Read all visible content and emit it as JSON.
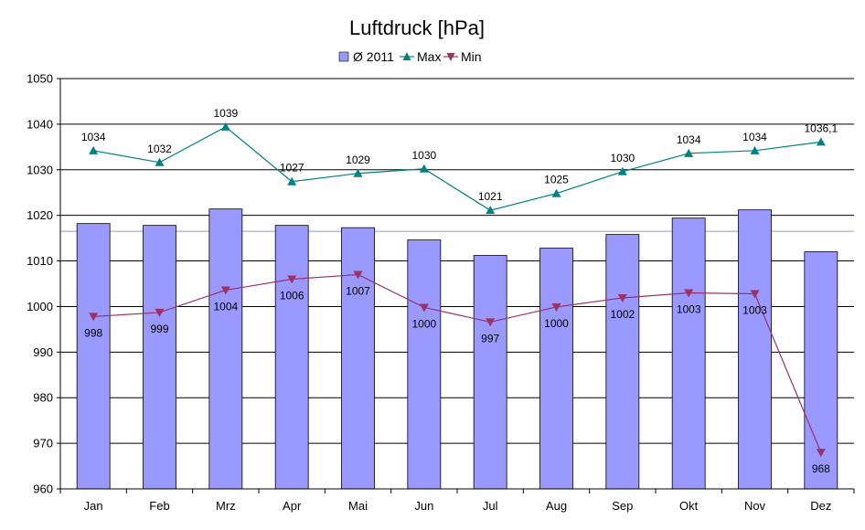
{
  "chart_data": {
    "type": "bar",
    "title": "Luftdruck [hPa]",
    "categories": [
      "Jan",
      "Feb",
      "Mrz",
      "Apr",
      "Mai",
      "Jun",
      "Jul",
      "Aug",
      "Sep",
      "Okt",
      "Nov",
      "Dez"
    ],
    "ylim": [
      960,
      1050
    ],
    "yticks": [
      "960",
      "970",
      "980",
      "990",
      "1000",
      "1010",
      "1020",
      "1030",
      "1040",
      "1050"
    ],
    "grid": true,
    "legend_position": "top",
    "reference_line": 1016.5,
    "series": [
      {
        "name": "Ø 2011",
        "type": "bar",
        "color": "#9999ff",
        "values": [
          1018.2,
          1017.8,
          1021.4,
          1017.8,
          1017.3,
          1014.6,
          1011.2,
          1012.8,
          1015.8,
          1019.4,
          1021.2,
          1012.0
        ]
      },
      {
        "name": "Max",
        "type": "line",
        "marker": "triangle-up",
        "color": "#008080",
        "values": [
          1034.2,
          1031.6,
          1039.4,
          1027.4,
          1029.2,
          1030.2,
          1021.1,
          1024.8,
          1029.6,
          1033.6,
          1034.2,
          1036.1
        ],
        "labels": [
          "1034",
          "1032",
          "1039",
          "1027",
          "1029",
          "1030",
          "1021",
          "1025",
          "1030",
          "1034",
          "1034",
          "1036,1"
        ]
      },
      {
        "name": "Min",
        "type": "line",
        "marker": "triangle-down",
        "color": "#993366",
        "values": [
          997.8,
          998.7,
          1003.6,
          1006.0,
          1007.0,
          999.8,
          996.6,
          999.9,
          1001.9,
          1003.0,
          1002.8,
          968.0
        ],
        "labels": [
          "998",
          "999",
          "1004",
          "1006",
          "1007",
          "1000",
          "997",
          "1000",
          "1002",
          "1003",
          "1003",
          "968"
        ]
      }
    ]
  }
}
